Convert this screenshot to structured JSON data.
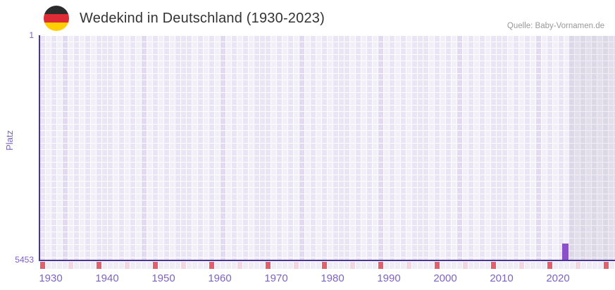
{
  "header": {
    "title": "Wedekind in Deutschland (1930-2023)",
    "flag_icon": "german-flag-circle",
    "source": "Quelle: Baby-Vornamen.de"
  },
  "y_axis": {
    "label": "Platz",
    "top_tick": "1",
    "bottom_tick": "5453"
  },
  "chart_data": {
    "type": "bar",
    "title": "Wedekind in Deutschland (1930-2023)",
    "xlabel": "",
    "ylabel": "Platz",
    "x_tick_labels": [
      "1930",
      "1940",
      "1950",
      "1960",
      "1970",
      "1980",
      "1990",
      "2000",
      "2010",
      "2020"
    ],
    "x_range_years": [
      1930,
      2023
    ],
    "y_axis": {
      "top_value": 1,
      "bottom_value": 5453,
      "inverted": true
    },
    "series": [
      {
        "name": "Platz",
        "points": [
          {
            "year": 2021,
            "rank": 5453
          }
        ]
      }
    ],
    "shaded_recent_region": {
      "start_year": 2022
    },
    "axis_marker_row": {
      "major_interval_years": 10,
      "minor_interval_years": 5,
      "total_year_cells": 102
    },
    "grid": true,
    "legend_shown": false,
    "colors": {
      "bar": "#8a51c9",
      "axis": "#4b3597",
      "label": "#7e62c2",
      "tick_major": "#e2606e",
      "tick_minor": "#f3d6e1",
      "tick_base": "#efecf8",
      "grid_light": "#f2effb",
      "grid_dark": "#e9e4f6",
      "gray_light": "#e2dfeb",
      "gray_dark": "#dcd9e6",
      "title": "#333333",
      "source": "#999999",
      "flag_black": "#2b2b2b",
      "flag_red": "#dd2c35",
      "flag_gold": "#ffcf00"
    }
  }
}
